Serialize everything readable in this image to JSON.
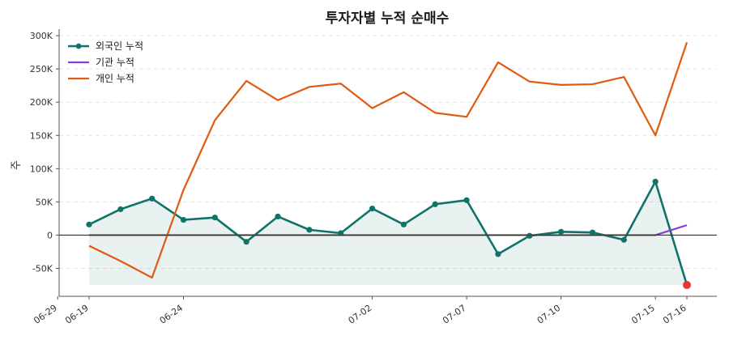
{
  "chart_data": {
    "type": "line",
    "title": "투자자별 누적 순매수",
    "ylabel": "주",
    "xlabel": "",
    "ylim": [
      -92000,
      305000
    ],
    "yticks": [
      -50000,
      0,
      50000,
      100000,
      150000,
      200000,
      250000,
      300000
    ],
    "ytick_labels": [
      "-50K",
      "0",
      "50K",
      "100K",
      "150K",
      "200K",
      "250K",
      "300K"
    ],
    "x": [
      "06-19",
      "06-20",
      "06-23",
      "06-24",
      "06-25",
      "06-26",
      "06-27",
      "06-30",
      "07-01",
      "07-02",
      "07-03",
      "07-04",
      "07-07",
      "07-08",
      "07-09",
      "07-10",
      "07-11",
      "07-14",
      "07-15",
      "07-16"
    ],
    "xtick_labels": [
      "06-19",
      "06-24",
      "06-29",
      "07-02",
      "07-07",
      "07-10",
      "07-15",
      "07-16"
    ],
    "xtick_dates": [
      "06-19",
      "06-24",
      "06-29",
      "07-02",
      "07-07",
      "07-10",
      "07-15",
      "07-16"
    ],
    "series": [
      {
        "name": "외국인 누적",
        "color": "#0f7369",
        "values": [
          16000,
          39000,
          55000,
          23000,
          26500,
          -10000,
          28000,
          8000,
          3000,
          40000,
          16000,
          46500,
          52500,
          -28500,
          -1000,
          5000,
          4000,
          -7000,
          80500,
          -75000
        ],
        "markers": true,
        "fill_to": -75000
      },
      {
        "name": "기관 누적",
        "color": "#8a3ad6",
        "values": [
          0,
          0,
          0,
          0,
          0,
          0,
          0,
          0,
          0,
          0,
          0,
          0,
          0,
          0,
          0,
          0,
          0,
          0,
          0,
          15000
        ],
        "markers": false
      },
      {
        "name": "개인 누적",
        "color": "#e05a10",
        "values": [
          -16000,
          -39000,
          -64000,
          68000,
          173000,
          232000,
          203000,
          223000,
          228000,
          191000,
          215000,
          184000,
          178000,
          260000,
          231000,
          226000,
          227000,
          238000,
          150000,
          290000
        ],
        "markers": false
      }
    ],
    "highlight_point": {
      "x": "07-16",
      "value": -75000,
      "color": "#e53935"
    },
    "legend": {
      "placement": "top-left"
    },
    "grid": {
      "y": true,
      "x": false,
      "style": "dashed"
    },
    "zero_line": true
  }
}
